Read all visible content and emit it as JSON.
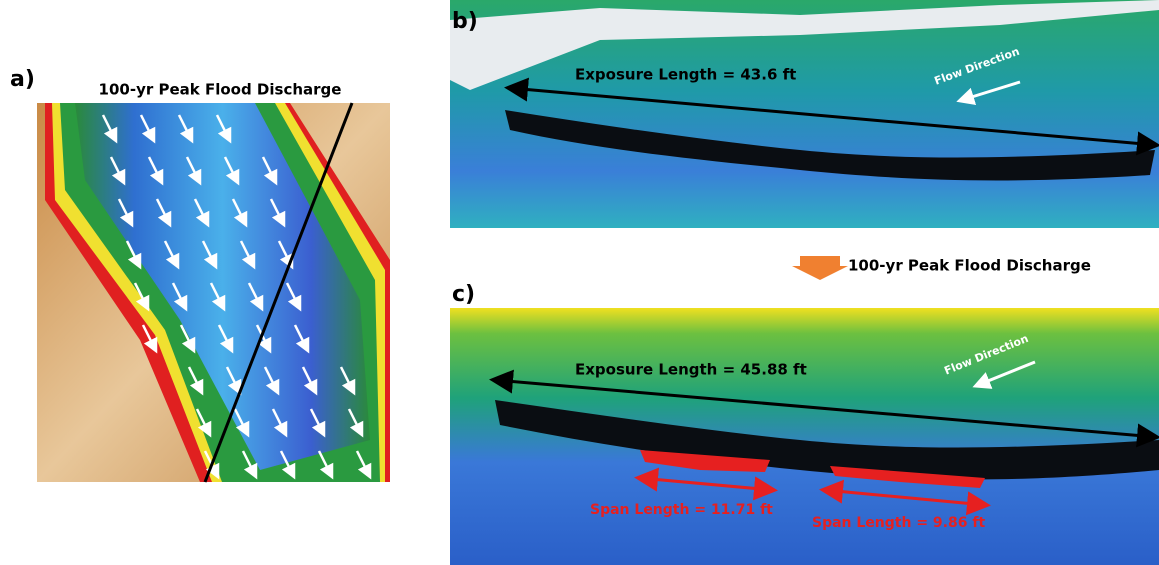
{
  "panels": [
    {
      "label": "a)",
      "title": "100-yr Peak Flood Discharge"
    },
    {
      "label": "b)",
      "exposure_label": "Exposure Length = 43.6 ft",
      "flow_label": "Flow Direction"
    },
    {
      "label": "c)",
      "exposure_label": "Exposure Length = 45.88 ft",
      "flow_label": "Flow Direction",
      "span_labels": [
        "Span Length = 11.71 ft",
        "Span Length = 9.86 ft"
      ]
    }
  ],
  "transition": {
    "label": "100-yr Peak Flood Discharge"
  }
}
